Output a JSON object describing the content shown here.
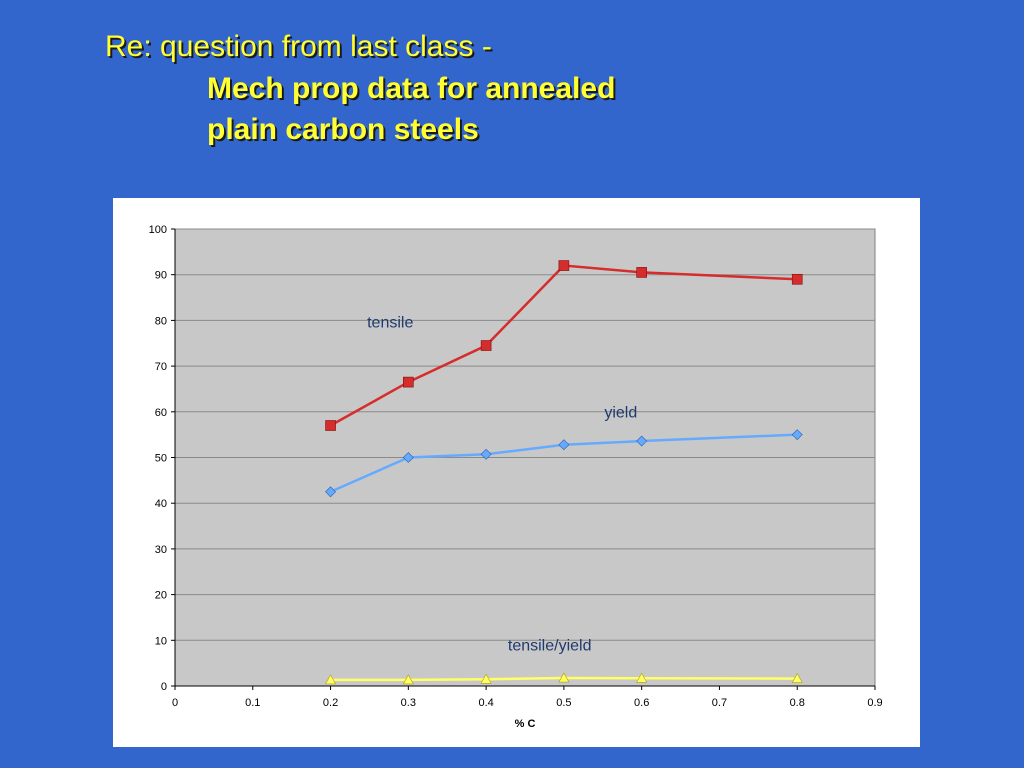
{
  "slide": {
    "title_line_1": "Re: question from last class -",
    "title_line_2": "Mech prop data for annealed",
    "title_line_3": "plain carbon steels",
    "background_color": "#3366cc",
    "title_color": "#ffff33"
  },
  "chart_data": {
    "type": "line",
    "xlabel": "% C",
    "ylabel": "",
    "xlim": [
      0,
      0.9
    ],
    "ylim": [
      0,
      100
    ],
    "x_ticks": [
      "0",
      "0.1",
      "0.2",
      "0.3",
      "0.4",
      "0.5",
      "0.6",
      "0.7",
      "0.8",
      "0.9"
    ],
    "y_ticks": [
      "0",
      "10",
      "20",
      "30",
      "40",
      "50",
      "60",
      "70",
      "80",
      "90",
      "100"
    ],
    "grid": true,
    "plot_background": "#c8c8c8",
    "series": [
      {
        "name": "tensile",
        "color": "#d62c2c",
        "marker": "square",
        "x": [
          0.2,
          0.3,
          0.4,
          0.5,
          0.6,
          0.8
        ],
        "y": [
          57,
          66.5,
          74.5,
          92,
          90.5,
          89
        ]
      },
      {
        "name": "yield",
        "color": "#66aaff",
        "marker": "diamond",
        "x": [
          0.2,
          0.3,
          0.4,
          0.5,
          0.6,
          0.8
        ],
        "y": [
          42.5,
          50,
          50.7,
          52.8,
          53.6,
          55
        ]
      },
      {
        "name": "tensile/yield",
        "color": "#ffff66",
        "marker": "triangle",
        "x": [
          0.2,
          0.3,
          0.4,
          0.5,
          0.6,
          0.8
        ],
        "y": [
          1.34,
          1.33,
          1.47,
          1.74,
          1.69,
          1.62
        ]
      }
    ],
    "annotations": [
      {
        "text": "tensile",
        "x": 0.247,
        "y": 78.5
      },
      {
        "text": "yield",
        "x": 0.552,
        "y": 58.8
      },
      {
        "text": "tensile/yield",
        "x": 0.428,
        "y": 7.8
      }
    ]
  }
}
